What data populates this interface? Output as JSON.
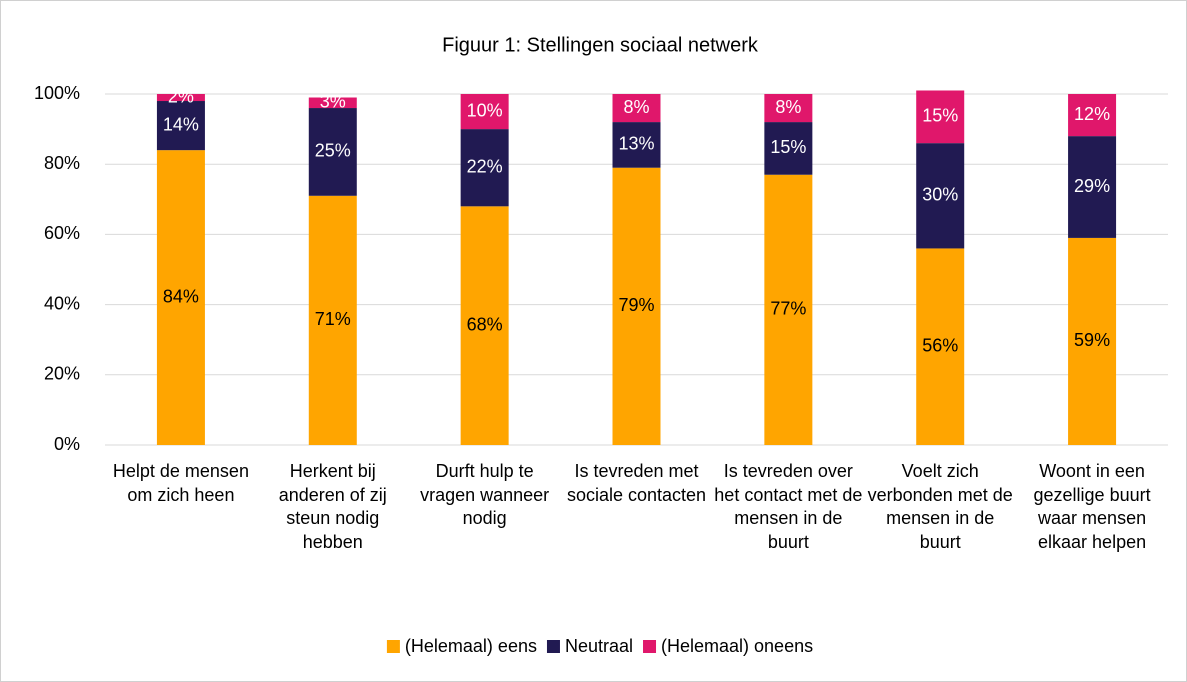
{
  "chart_data": {
    "type": "stacked_bar",
    "title": "Figuur 1: Stellingen sociaal netwerk",
    "categories": [
      "Helpt de mensen om zich heen",
      "Herkent bij anderen of zij steun nodig hebben",
      "Durft hulp te vragen wanneer nodig",
      "Is tevreden met sociale contacten",
      "Is tevreden over het contact met de mensen in de buurt",
      "Voelt zich verbonden met de mensen in de buurt",
      "Woont in een gezellige buurt waar mensen elkaar helpen"
    ],
    "series": [
      {
        "name": "(Helemaal) eens",
        "color": "#FFA500",
        "values": [
          84,
          71,
          68,
          79,
          77,
          56,
          59
        ],
        "value_labels": [
          "84%",
          "71%",
          "68%",
          "79%",
          "77%",
          "56%",
          "59%"
        ]
      },
      {
        "name": "Neutraal",
        "color": "#211A52",
        "values": [
          14,
          25,
          22,
          13,
          15,
          30,
          29
        ],
        "value_labels": [
          "14%",
          "25%",
          "22%",
          "13%",
          "15%",
          "30%",
          "29%"
        ]
      },
      {
        "name": "(Helemaal) oneens",
        "color": "#E0176B",
        "values": [
          2,
          3,
          10,
          8,
          8,
          15,
          12
        ],
        "value_labels": [
          "2%",
          "3%",
          "10%",
          "8%",
          "8%",
          "15%",
          "12%"
        ]
      }
    ],
    "ylim": [
      0,
      100
    ],
    "yticks": [
      {
        "value": 0,
        "label": "0%"
      },
      {
        "value": 20,
        "label": "20%"
      },
      {
        "value": 40,
        "label": "40%"
      },
      {
        "value": 60,
        "label": "60%"
      },
      {
        "value": 80,
        "label": "80%"
      },
      {
        "value": 100,
        "label": "100%"
      }
    ],
    "grid": true,
    "legend": "bottom"
  }
}
